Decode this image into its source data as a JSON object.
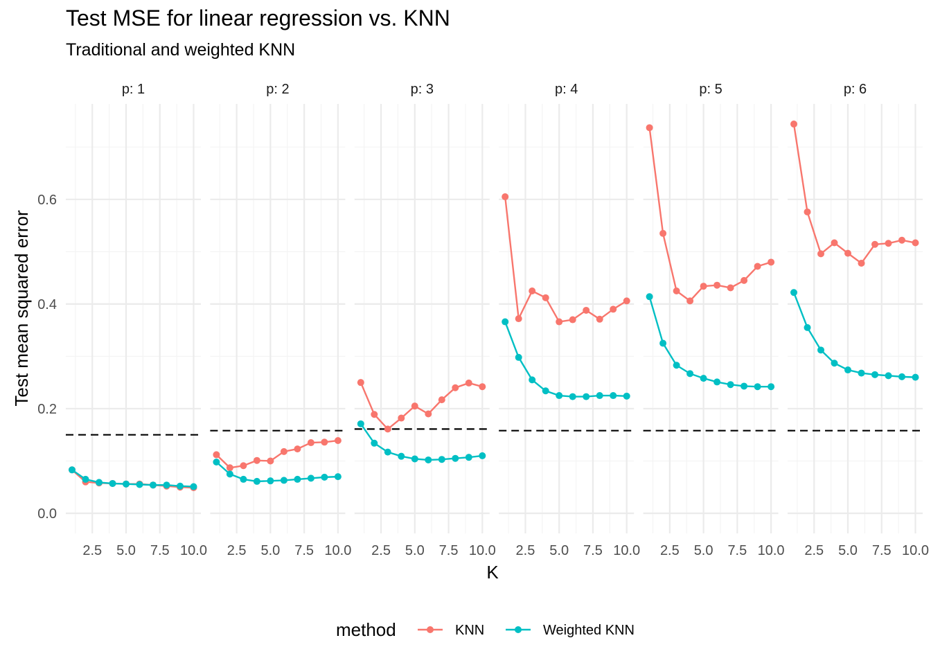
{
  "chart_data": {
    "type": "line",
    "title": "Test MSE for linear regression vs. KNN",
    "subtitle": "Traditional and weighted KNN",
    "xlabel": "K",
    "ylabel": "Test mean squared error",
    "xlim": [
      1,
      10
    ],
    "ylim": [
      0,
      0.75
    ],
    "x_ticks": [
      "2.5",
      "5.0",
      "7.5",
      "10.0"
    ],
    "y_ticks": [
      "0.0",
      "0.2",
      "0.4",
      "0.6"
    ],
    "grid": true,
    "legend": {
      "title": "method",
      "position": "bottom"
    },
    "x": [
      1,
      2,
      3,
      4,
      5,
      6,
      7,
      8,
      9,
      10
    ],
    "panels": [
      {
        "label": "p: 1",
        "linear_regression_mse": 0.15,
        "series": [
          {
            "name": "KNN",
            "color": "#F8766D",
            "values": [
              0.083,
              0.06,
              0.058,
              0.057,
              0.056,
              0.056,
              0.054,
              0.052,
              0.05,
              0.049
            ]
          },
          {
            "name": "Weighted KNN",
            "color": "#00BFC4",
            "values": [
              0.083,
              0.065,
              0.059,
              0.057,
              0.056,
              0.055,
              0.054,
              0.054,
              0.052,
              0.051
            ]
          }
        ]
      },
      {
        "label": "p: 2",
        "linear_regression_mse": 0.158,
        "series": [
          {
            "name": "KNN",
            "color": "#F8766D",
            "values": [
              0.112,
              0.087,
              0.091,
              0.101,
              0.1,
              0.118,
              0.123,
              0.135,
              0.136,
              0.139
            ]
          },
          {
            "name": "Weighted KNN",
            "color": "#00BFC4",
            "values": [
              0.098,
              0.075,
              0.065,
              0.061,
              0.062,
              0.063,
              0.065,
              0.067,
              0.069,
              0.07
            ]
          }
        ]
      },
      {
        "label": "p: 3",
        "linear_regression_mse": 0.161,
        "series": [
          {
            "name": "KNN",
            "color": "#F8766D",
            "values": [
              0.25,
              0.189,
              0.161,
              0.182,
              0.205,
              0.19,
              0.217,
              0.24,
              0.249,
              0.242
            ]
          },
          {
            "name": "Weighted KNN",
            "color": "#00BFC4",
            "values": [
              0.171,
              0.134,
              0.117,
              0.109,
              0.104,
              0.102,
              0.103,
              0.105,
              0.107,
              0.11
            ]
          }
        ]
      },
      {
        "label": "p: 4",
        "linear_regression_mse": 0.158,
        "series": [
          {
            "name": "KNN",
            "color": "#F8766D",
            "values": [
              0.605,
              0.372,
              0.425,
              0.412,
              0.366,
              0.37,
              0.388,
              0.371,
              0.39,
              0.406
            ]
          },
          {
            "name": "Weighted KNN",
            "color": "#00BFC4",
            "values": [
              0.366,
              0.298,
              0.255,
              0.234,
              0.225,
              0.223,
              0.223,
              0.225,
              0.225,
              0.224
            ]
          }
        ]
      },
      {
        "label": "p: 5",
        "linear_regression_mse": 0.158,
        "series": [
          {
            "name": "KNN",
            "color": "#F8766D",
            "values": [
              0.737,
              0.535,
              0.425,
              0.406,
              0.434,
              0.436,
              0.431,
              0.445,
              0.472,
              0.48
            ]
          },
          {
            "name": "Weighted KNN",
            "color": "#00BFC4",
            "values": [
              0.414,
              0.325,
              0.283,
              0.267,
              0.258,
              0.251,
              0.246,
              0.243,
              0.242,
              0.242
            ]
          }
        ]
      },
      {
        "label": "p: 6",
        "linear_regression_mse": 0.158,
        "series": [
          {
            "name": "KNN",
            "color": "#F8766D",
            "values": [
              0.744,
              0.576,
              0.496,
              0.517,
              0.497,
              0.478,
              0.514,
              0.516,
              0.522,
              0.517
            ]
          },
          {
            "name": "Weighted KNN",
            "color": "#00BFC4",
            "values": [
              0.422,
              0.355,
              0.312,
              0.287,
              0.274,
              0.268,
              0.265,
              0.263,
              0.261,
              0.26
            ]
          }
        ]
      }
    ]
  }
}
